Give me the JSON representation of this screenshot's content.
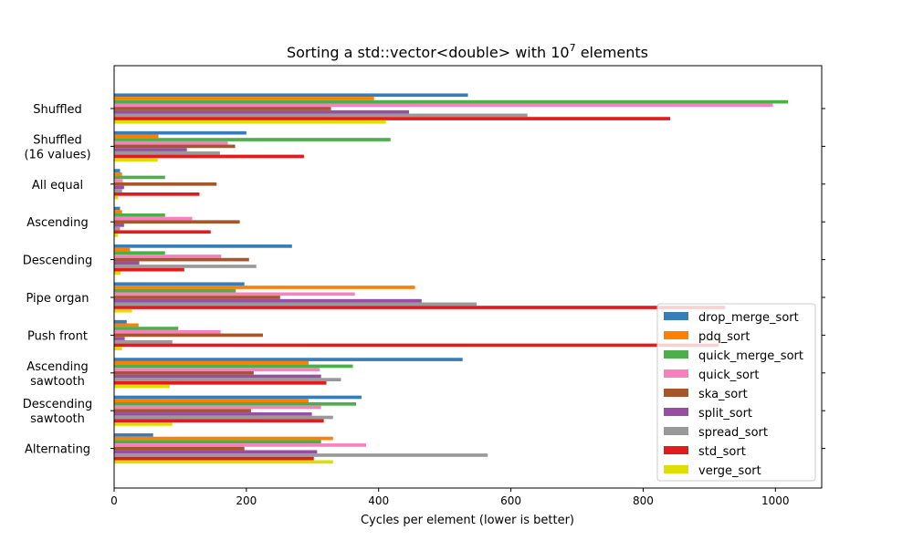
{
  "chart_data": {
    "type": "bar",
    "orientation": "horizontal",
    "title": {
      "prefix": "Sorting a std::vector<double> with 10",
      "exponent": "7",
      "suffix": " elements"
    },
    "xlabel": "Cycles per element (lower is better)",
    "ylabel": "",
    "xlim": [
      0,
      1070
    ],
    "xticks": [
      0,
      200,
      400,
      600,
      800,
      1000
    ],
    "grid": false,
    "legend_position": "lower-right",
    "categories": [
      "Shuffled",
      "Shuffled\n(16 values)",
      "All equal",
      "Ascending",
      "Descending",
      "Pipe organ",
      "Push front",
      "Ascending\nsawtooth",
      "Descending\nsawtooth",
      "Alternating"
    ],
    "series": [
      {
        "name": "drop_merge_sort",
        "color": "#377eb8",
        "values": [
          535,
          200,
          9,
          9,
          269,
          197,
          19,
          527,
          374,
          59
        ]
      },
      {
        "name": "pdq_sort",
        "color": "#ff7f00",
        "values": [
          393,
          67,
          12,
          12,
          24,
          455,
          37,
          294,
          294,
          331
        ]
      },
      {
        "name": "quick_merge_sort",
        "color": "#4daf4a",
        "values": [
          1019,
          418,
          77,
          77,
          77,
          184,
          97,
          361,
          366,
          313
        ]
      },
      {
        "name": "quick_sort",
        "color": "#f781bf",
        "values": [
          996,
          172,
          13,
          118,
          162,
          364,
          161,
          311,
          313,
          381
        ]
      },
      {
        "name": "ska_sort",
        "color": "#a65628",
        "values": [
          328,
          183,
          155,
          190,
          204,
          251,
          225,
          211,
          207,
          197
        ]
      },
      {
        "name": "split_sort",
        "color": "#984ea3",
        "values": [
          446,
          110,
          15,
          15,
          38,
          465,
          16,
          313,
          299,
          307
        ]
      },
      {
        "name": "spread_sort",
        "color": "#999999",
        "values": [
          625,
          160,
          12,
          9,
          215,
          548,
          88,
          343,
          331,
          565
        ]
      },
      {
        "name": "std_sort",
        "color": "#e41a1c",
        "values": [
          841,
          287,
          129,
          146,
          106,
          924,
          914,
          321,
          317,
          302
        ]
      },
      {
        "name": "verge_sort",
        "color": "#dede00",
        "values": [
          411,
          66,
          6,
          6,
          10,
          27,
          12,
          84,
          88,
          331
        ]
      }
    ]
  }
}
